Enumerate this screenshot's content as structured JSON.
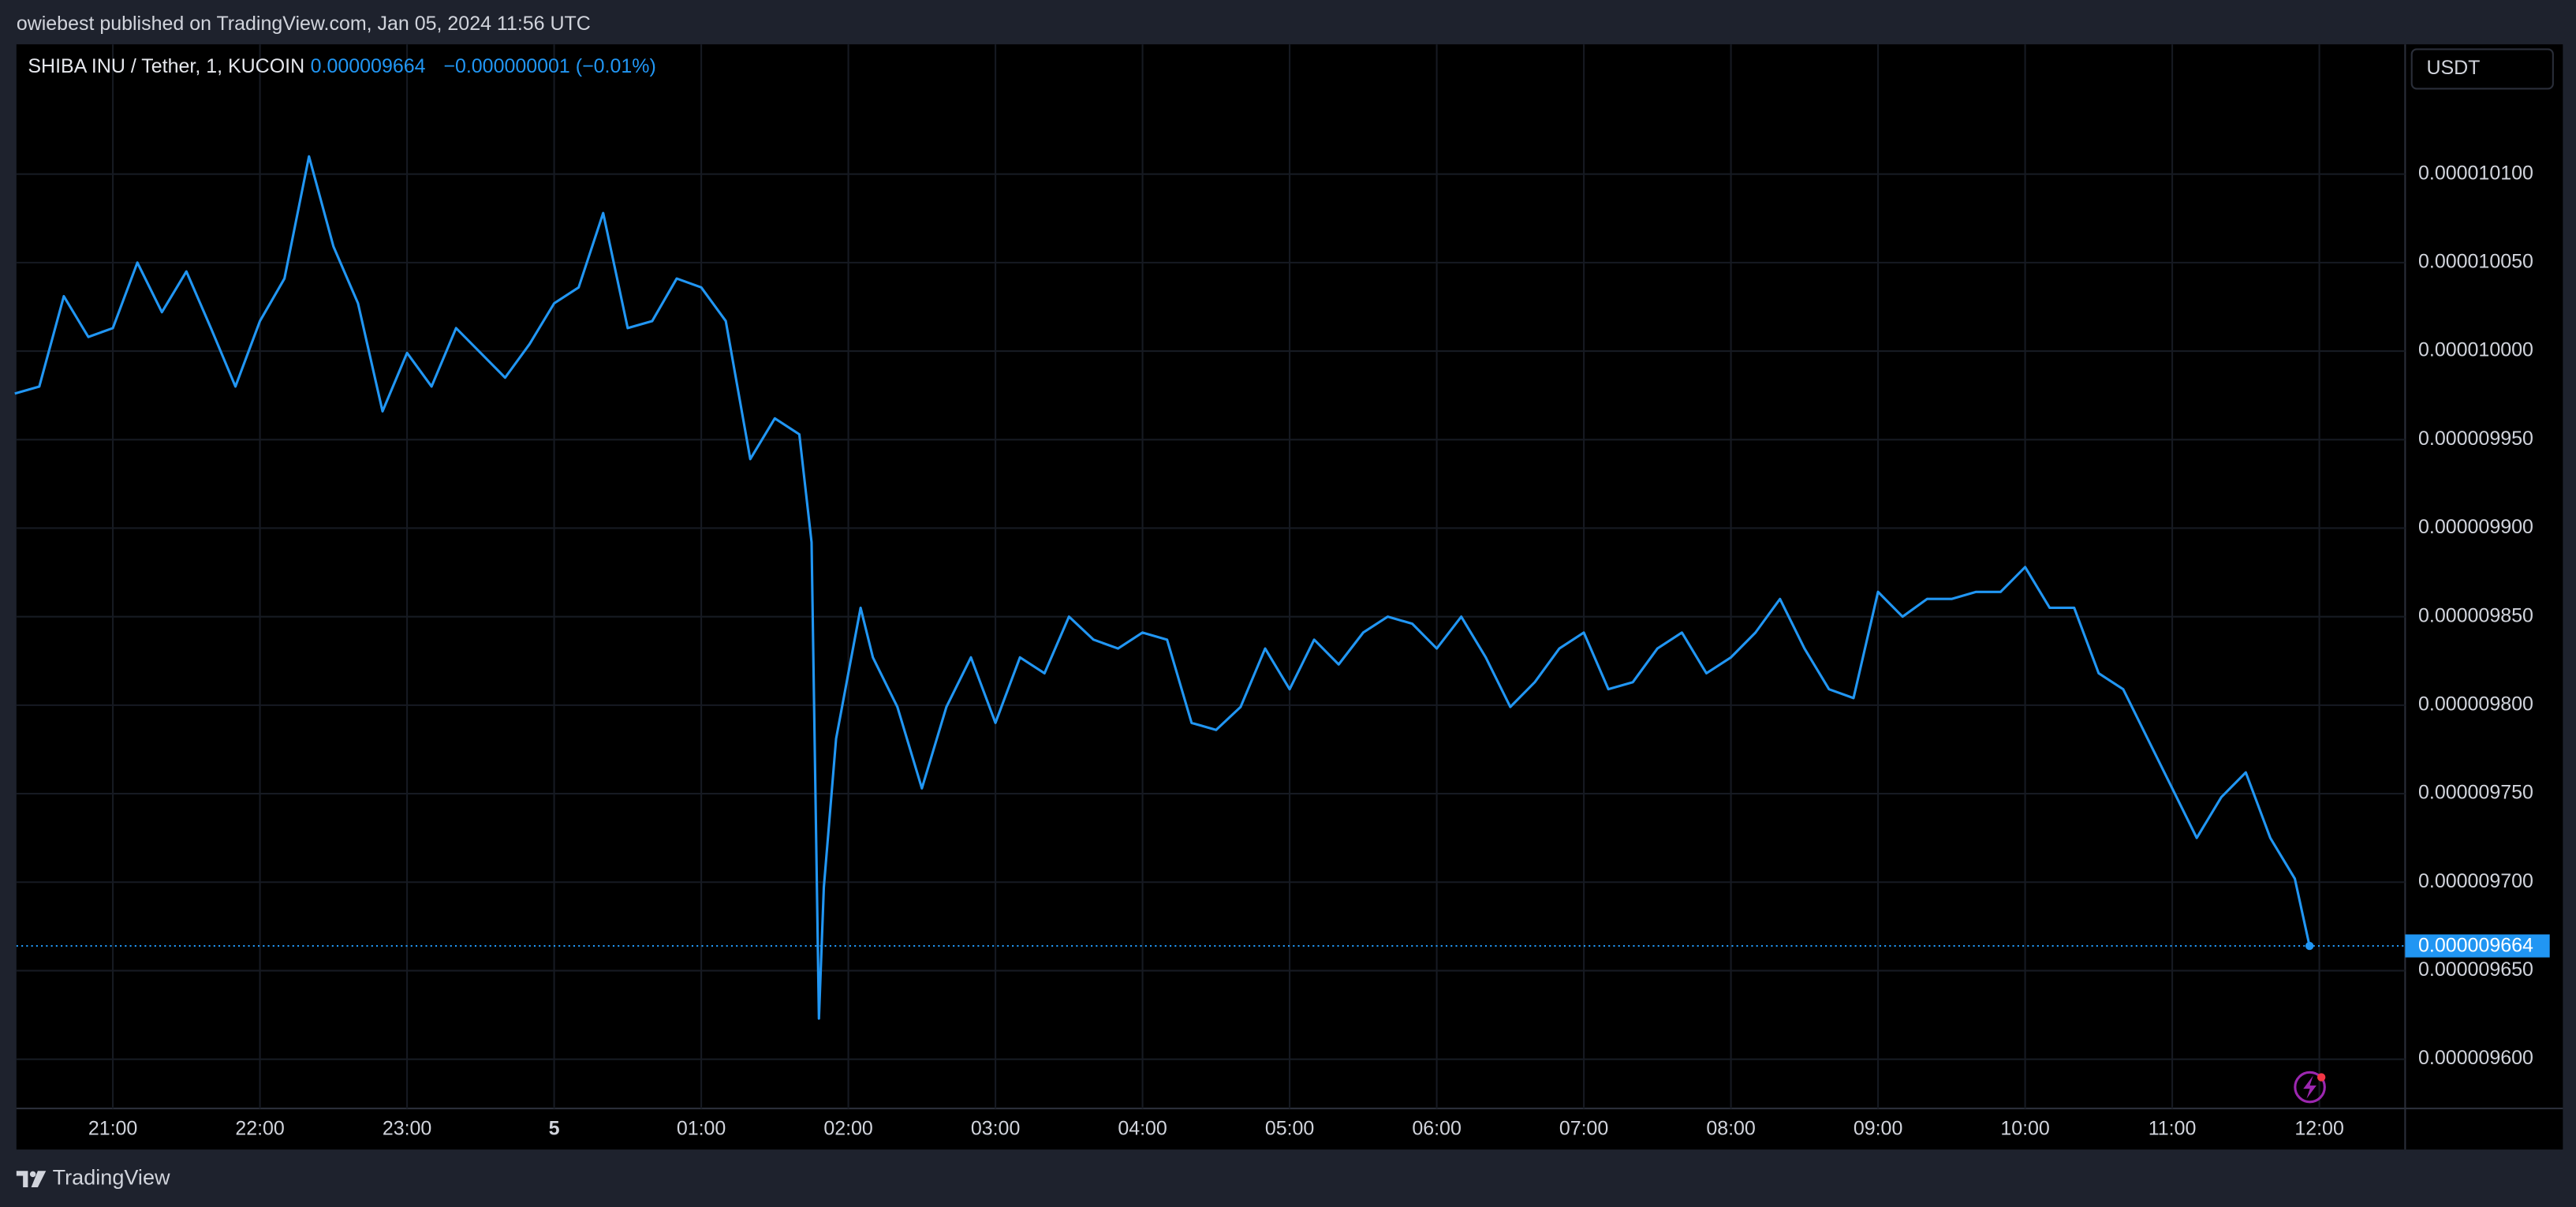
{
  "publisher_line": "owiebest published on TradingView.com, Jan 05, 2024 11:56 UTC",
  "footer_brand": "TradingView",
  "chart_data": {
    "type": "line",
    "change_label": "−0.000000001 (−0.01%)",
    "currency": "USDT",
    "last_price": {
      "value": 9.664e-06,
      "label": "0.000009664"
    },
    "x": [
      "20:20",
      "20:30",
      "20:40",
      "20:50",
      "21:00",
      "21:10",
      "21:20",
      "21:30",
      "21:40",
      "21:50",
      "22:00",
      "22:10",
      "22:20",
      "22:30",
      "22:40",
      "22:50",
      "23:00",
      "23:10",
      "23:20",
      "23:30",
      "23:40",
      "23:50",
      "00:00",
      "00:10",
      "00:20",
      "00:30",
      "00:40",
      "00:50",
      "01:00",
      "01:10",
      "01:20",
      "01:30",
      "01:40",
      "01:45",
      "01:48",
      "01:50",
      "01:55",
      "02:00",
      "02:05",
      "02:10",
      "02:20",
      "02:30",
      "02:40",
      "02:50",
      "03:00",
      "03:10",
      "03:20",
      "03:30",
      "03:40",
      "03:50",
      "04:00",
      "04:10",
      "04:20",
      "04:30",
      "04:40",
      "04:50",
      "05:00",
      "05:10",
      "05:20",
      "05:30",
      "05:40",
      "05:50",
      "06:00",
      "06:10",
      "06:20",
      "06:30",
      "06:40",
      "06:50",
      "07:00",
      "07:10",
      "07:20",
      "07:30",
      "07:40",
      "07:50",
      "08:00",
      "08:10",
      "08:20",
      "08:30",
      "08:40",
      "08:50",
      "09:00",
      "09:10",
      "09:20",
      "09:30",
      "09:40",
      "09:50",
      "10:00",
      "10:10",
      "10:20",
      "10:30",
      "10:40",
      "10:50",
      "11:00",
      "11:10",
      "11:20",
      "11:30",
      "11:40",
      "11:50",
      "11:56"
    ],
    "series": [
      {
        "name": "SHIBA INU / Tether, 1, KUCOIN",
        "color": "#2196f3",
        "values": [
          9.976e-06,
          9.98e-06,
          1.0031e-05,
          1.0008e-05,
          1.0013e-05,
          1.005e-05,
          1.0022e-05,
          1.0045e-05,
          1.0013e-05,
          9.98e-06,
          1.0017e-05,
          1.0041e-05,
          1.011e-05,
          1.0059e-05,
          1.0027e-05,
          9.966e-06,
          9.999e-06,
          9.98e-06,
          1.0013e-05,
          9.999e-06,
          9.985e-06,
          1.0004e-05,
          1.0027e-05,
          1.0036e-05,
          1.0078e-05,
          1.0013e-05,
          1.0017e-05,
          1.0041e-05,
          1.0036e-05,
          1.0017e-05,
          9.939e-06,
          9.962e-06,
          9.953e-06,
          9.892e-06,
          9.623e-06,
          9.697e-06,
          9.781e-06,
          9.818e-06,
          9.855e-06,
          9.827e-06,
          9.799e-06,
          9.753e-06,
          9.799e-06,
          9.827e-06,
          9.79e-06,
          9.827e-06,
          9.818e-06,
          9.85e-06,
          9.837e-06,
          9.832e-06,
          9.841e-06,
          9.837e-06,
          9.79e-06,
          9.786e-06,
          9.799e-06,
          9.832e-06,
          9.809e-06,
          9.837e-06,
          9.823e-06,
          9.841e-06,
          9.85e-06,
          9.846e-06,
          9.832e-06,
          9.85e-06,
          9.827e-06,
          9.799e-06,
          9.813e-06,
          9.832e-06,
          9.841e-06,
          9.809e-06,
          9.813e-06,
          9.832e-06,
          9.841e-06,
          9.818e-06,
          9.827e-06,
          9.841e-06,
          9.86e-06,
          9.832e-06,
          9.809e-06,
          9.804e-06,
          9.864e-06,
          9.85e-06,
          9.86e-06,
          9.86e-06,
          9.864e-06,
          9.864e-06,
          9.878e-06,
          9.855e-06,
          9.855e-06,
          9.818e-06,
          9.809e-06,
          9.781e-06,
          9.753e-06,
          9.725e-06,
          9.748e-06,
          9.762e-06,
          9.725e-06,
          9.702e-06,
          9.664e-06
        ]
      }
    ],
    "xlim": [
      "20:20",
      "12:35"
    ],
    "xticks": [
      "21:00",
      "22:00",
      "23:00",
      {
        "value": "00:00",
        "label": "5"
      },
      "01:00",
      "02:00",
      "03:00",
      "04:00",
      "05:00",
      "06:00",
      "07:00",
      "08:00",
      "09:00",
      "10:00",
      "11:00",
      "12:00"
    ],
    "ylim": [
      9.57217e-06,
      1.01733e-05
    ],
    "yticks": [
      {
        "value": 1.01e-05,
        "label": "0.000010100"
      },
      {
        "value": 1.005e-05,
        "label": "0.000010050"
      },
      {
        "value": 1e-05,
        "label": "0.000010000"
      },
      {
        "value": 9.95e-06,
        "label": "0.000009950"
      },
      {
        "value": 9.9e-06,
        "label": "0.000009900"
      },
      {
        "value": 9.85e-06,
        "label": "0.000009850"
      },
      {
        "value": 9.8e-06,
        "label": "0.000009800"
      },
      {
        "value": 9.75e-06,
        "label": "0.000009750"
      },
      {
        "value": 9.7e-06,
        "label": "0.000009700"
      },
      {
        "value": 9.65e-06,
        "label": "0.000009650"
      },
      {
        "value": 9.6e-06,
        "label": "0.000009600"
      }
    ],
    "grid": true
  }
}
